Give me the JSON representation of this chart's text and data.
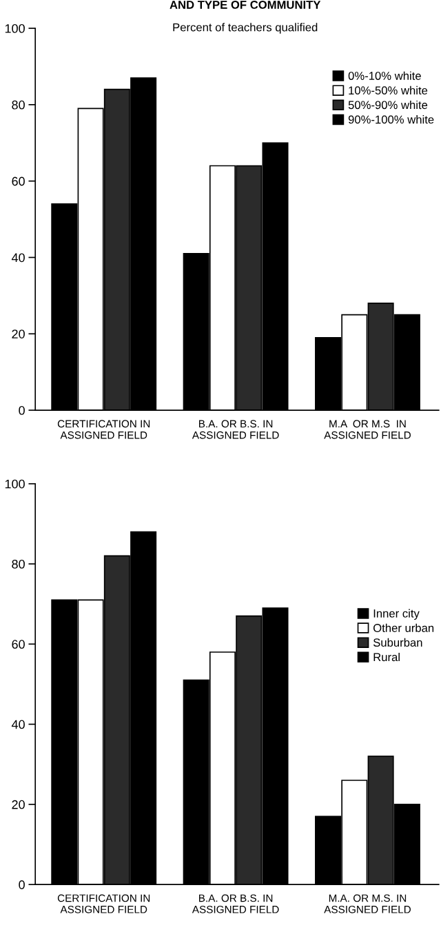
{
  "chart_data": [
    {
      "type": "bar",
      "title": "AND TYPE OF COMMUNITY",
      "subtitle": "Percent of teachers qualified",
      "categories": [
        "CERTIFICATION IN\nASSIGNED FIELD",
        "B.A. OR B.S. IN\nASSIGNED FIELD",
        "M.A  OR M.S  IN\nASSIGNED FIELD"
      ],
      "series": [
        {
          "name": "0%-10% white",
          "color": "#000000",
          "values": [
            54,
            41,
            19
          ]
        },
        {
          "name": "10%-50% white",
          "color": "#ffffff",
          "values": [
            79,
            64,
            25
          ]
        },
        {
          "name": "50%-90% white",
          "color": "#2b2b2b",
          "values": [
            84,
            64,
            28
          ]
        },
        {
          "name": "90%-100% white",
          "color": "#000000",
          "values": [
            87,
            70,
            25
          ]
        }
      ],
      "ylim": [
        0,
        100
      ],
      "yticks": [
        0,
        20,
        40,
        60,
        80,
        100
      ],
      "grid": false,
      "legend": "top right"
    },
    {
      "type": "bar",
      "categories": [
        "CERTIFICATION IN\nASSIGNED FIELD",
        "B.A. OR B.S. IN\nASSIGNED FIELD",
        "M.A. OR M.S. IN\nASSIGNED FIELD"
      ],
      "series": [
        {
          "name": "Inner city",
          "color": "#000000",
          "values": [
            71,
            51,
            17
          ]
        },
        {
          "name": "Other urban",
          "color": "#ffffff",
          "values": [
            71,
            58,
            26
          ]
        },
        {
          "name": "Suburban",
          "color": "#2b2b2b",
          "values": [
            82,
            67,
            32
          ]
        },
        {
          "name": "Rural",
          "color": "#000000",
          "values": [
            88,
            69,
            20
          ]
        }
      ],
      "ylim": [
        0,
        100
      ],
      "yticks": [
        0,
        20,
        40,
        60,
        80,
        100
      ],
      "grid": false,
      "legend": "right"
    }
  ]
}
